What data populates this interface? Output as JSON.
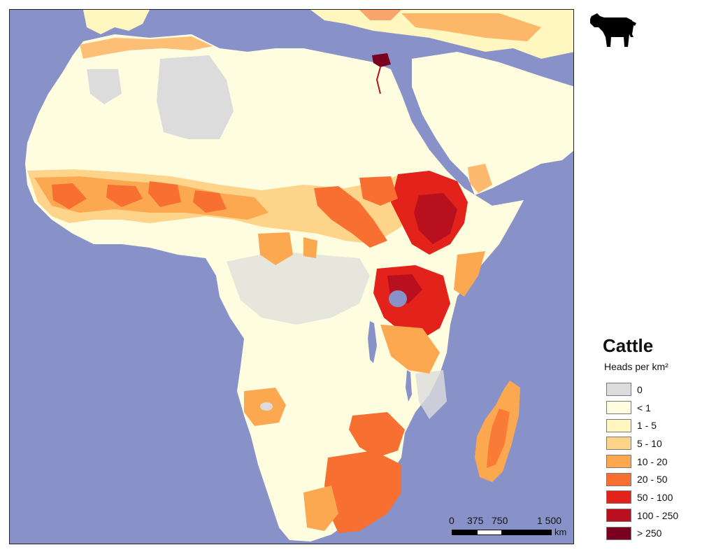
{
  "legend": {
    "title": "Cattle",
    "subtitle": "Heads per km²",
    "classes": [
      {
        "label": "0",
        "color": "#dcdcdc"
      },
      {
        "label": "< 1",
        "color": "#fffde0"
      },
      {
        "label": "1 - 5",
        "color": "#fff6c0"
      },
      {
        "label": "5 - 10",
        "color": "#fdd48a"
      },
      {
        "label": "10 - 20",
        "color": "#fca851"
      },
      {
        "label": "20 - 50",
        "color": "#f76f31"
      },
      {
        "label": "50 - 100",
        "color": "#e3221b"
      },
      {
        "label": "100 - 250",
        "color": "#b8101e"
      },
      {
        "label": "> 250",
        "color": "#7a0020"
      }
    ]
  },
  "scale_bar": {
    "labels": [
      "0",
      "375",
      "750",
      "1 500"
    ],
    "unit": "km"
  },
  "colors": {
    "water": "#8892c8",
    "land_base": "#fffde0",
    "no_data": "#dcdcdc",
    "frame": "#222222"
  },
  "icon": "cattle-silhouette-icon"
}
